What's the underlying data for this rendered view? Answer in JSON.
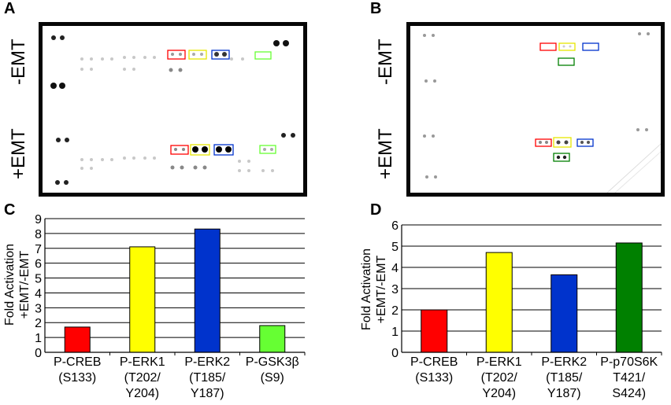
{
  "panels": {
    "A": "A",
    "B": "B",
    "C": "C",
    "D": "D"
  },
  "blot_labels": {
    "minus_emt": "-EMT",
    "plus_emt": "+EMT"
  },
  "colors": {
    "red": "#ff0000",
    "yellow": "#ffff00",
    "blue": "#0033cc",
    "light_green": "#66ff33",
    "dark_green": "#008000"
  },
  "chart_data": [
    {
      "type": "bar",
      "panel": "C",
      "ylabel_line1": "Fold Activation",
      "ylabel_line2": "+EMT/-EMT",
      "ylim": [
        0,
        9
      ],
      "yticks": [
        "0",
        "1",
        "2",
        "3",
        "4",
        "5",
        "6",
        "7",
        "8",
        "9"
      ],
      "grid": true,
      "categories": [
        {
          "line1": "P-CREB",
          "line2": "(S133)",
          "line3": ""
        },
        {
          "line1": "P-ERK1",
          "line2": "(T202/",
          "line3": "Y204)"
        },
        {
          "line1": "P-ERK2",
          "line2": "(T185/",
          "line3": "Y187)"
        },
        {
          "line1": "P-GSK3β",
          "line2": "(S9)",
          "line3": ""
        }
      ],
      "values": [
        1.7,
        7.1,
        8.3,
        1.8
      ],
      "bar_colors": [
        "#ff0000",
        "#ffff00",
        "#0033cc",
        "#66ff33"
      ]
    },
    {
      "type": "bar",
      "panel": "D",
      "ylabel_line1": "Fold Activation",
      "ylabel_line2": "+EMT/-EMT",
      "ylim": [
        0,
        6
      ],
      "yticks": [
        "0",
        "1",
        "2",
        "3",
        "4",
        "5",
        "6"
      ],
      "grid": true,
      "categories": [
        {
          "line1": "P-CREB",
          "line2": "(S133)",
          "line3": ""
        },
        {
          "line1": "P-ERK1",
          "line2": "(T202/",
          "line3": "Y204)"
        },
        {
          "line1": "P-ERK2",
          "line2": "(T185/",
          "line3": "Y187)"
        },
        {
          "line1": "P-p70S6K",
          "line2": "T421/",
          "line3": "S424)"
        }
      ],
      "values": [
        2.0,
        4.7,
        3.65,
        5.15
      ],
      "bar_colors": [
        "#ff0000",
        "#ffff00",
        "#0033cc",
        "#008000"
      ]
    }
  ]
}
